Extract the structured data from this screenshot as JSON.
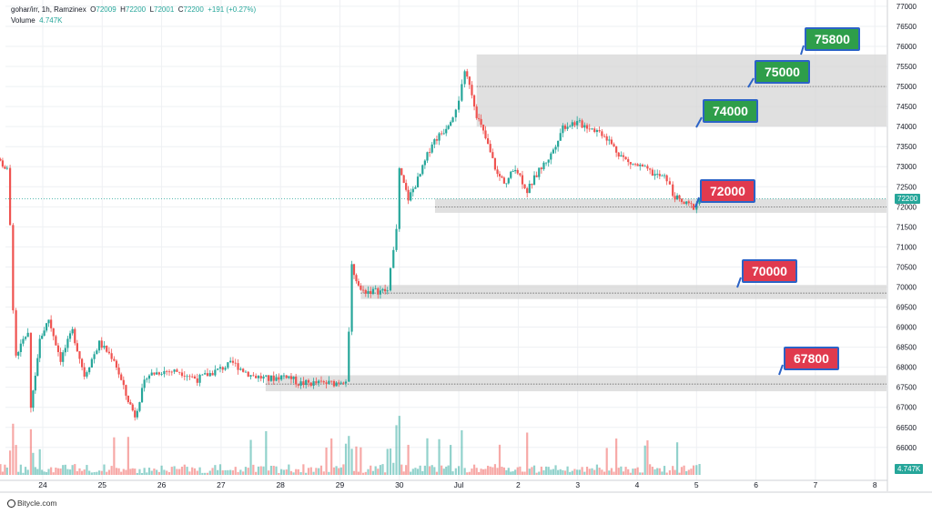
{
  "header": {
    "symbol": "gohar/irr, 1h, Ramzinex",
    "o_label": "O",
    "o_value": "72009",
    "h_label": "H",
    "h_value": "72200",
    "l_label": "L",
    "l_value": "72001",
    "c_label": "C",
    "c_value": "72200",
    "change": "+191 (+0.27%)",
    "volume_label": "Volume",
    "volume_value": "4.747K"
  },
  "footer": {
    "brand": "Bitycle.com"
  },
  "last_price_tag": "72200",
  "volume_tag": "4.747K",
  "colors": {
    "up": "#26a69a",
    "down": "#ef5350",
    "zone": "#d6d6d6",
    "callout_border": "#2b63c7",
    "callout_green": "#2e9e4a",
    "callout_red": "#e03a4e"
  },
  "chart_data": {
    "type": "candlestick",
    "ylim": [
      65500,
      77000
    ],
    "y_ticks": [
      66000,
      66500,
      67000,
      67500,
      68000,
      68500,
      69000,
      69500,
      70000,
      70500,
      71000,
      71500,
      72000,
      72500,
      73000,
      73500,
      74000,
      74500,
      75000,
      75500,
      76000,
      76500,
      77000
    ],
    "x_ticks": [
      "24",
      "25",
      "26",
      "27",
      "28",
      "29",
      "30",
      "Jul",
      "2",
      "3",
      "4",
      "5",
      "6",
      "7",
      "8"
    ],
    "zones": [
      {
        "low": 74000,
        "high": 75800,
        "start": "Jul 13:00"
      },
      {
        "low": 71850,
        "high": 72200,
        "start": "30 19:00"
      },
      {
        "low": 69700,
        "high": 70050,
        "start": "29 13:00"
      },
      {
        "low": 67400,
        "high": 67800,
        "start": "27 20:00"
      }
    ],
    "levels": [
      75000,
      72000,
      69850,
      67580
    ],
    "annotations": [
      {
        "text": "75800",
        "color": "green"
      },
      {
        "text": "75000",
        "color": "green"
      },
      {
        "text": "74000",
        "color": "green"
      },
      {
        "text": "72000",
        "color": "red"
      },
      {
        "text": "70000",
        "color": "red"
      },
      {
        "text": "67800",
        "color": "red"
      }
    ],
    "last_price": 72200,
    "path": [
      [
        23.0,
        73700
      ],
      [
        23.1,
        73900
      ],
      [
        23.25,
        73200
      ],
      [
        23.4,
        72900
      ],
      [
        23.45,
        71500
      ],
      [
        23.5,
        69500
      ],
      [
        23.55,
        68300
      ],
      [
        23.75,
        68900
      ],
      [
        23.8,
        67000
      ],
      [
        23.95,
        68700
      ],
      [
        24.1,
        69200
      ],
      [
        24.3,
        68200
      ],
      [
        24.5,
        68900
      ],
      [
        24.7,
        67800
      ],
      [
        24.95,
        68600
      ],
      [
        25.2,
        68200
      ],
      [
        25.4,
        67300
      ],
      [
        25.55,
        66800
      ],
      [
        25.75,
        67800
      ],
      [
        26.0,
        67900
      ],
      [
        26.3,
        67900
      ],
      [
        26.6,
        67700
      ],
      [
        26.9,
        67900
      ],
      [
        27.2,
        68100
      ],
      [
        27.5,
        67800
      ],
      [
        27.8,
        67700
      ],
      [
        28.1,
        67800
      ],
      [
        28.3,
        67600
      ],
      [
        28.6,
        67600
      ],
      [
        28.9,
        67600
      ],
      [
        29.1,
        67700
      ],
      [
        29.15,
        68800
      ],
      [
        29.2,
        70500
      ],
      [
        29.35,
        69900
      ],
      [
        29.6,
        69900
      ],
      [
        29.8,
        69900
      ],
      [
        29.85,
        70400
      ],
      [
        29.95,
        71500
      ],
      [
        30.0,
        72900
      ],
      [
        30.15,
        72200
      ],
      [
        30.35,
        72800
      ],
      [
        30.55,
        73600
      ],
      [
        30.75,
        73900
      ],
      [
        30.9,
        74300
      ],
      [
        31.0,
        74700
      ],
      [
        31.1,
        75300
      ],
      [
        31.18,
        75100
      ],
      [
        31.3,
        74300
      ],
      [
        31.45,
        73700
      ],
      [
        31.65,
        72800
      ],
      [
        31.8,
        72600
      ],
      [
        31.95,
        73000
      ],
      [
        32.15,
        72400
      ],
      [
        32.35,
        72900
      ],
      [
        32.55,
        73300
      ],
      [
        32.75,
        74000
      ],
      [
        32.95,
        74100
      ],
      [
        33.2,
        74000
      ],
      [
        33.45,
        73800
      ],
      [
        33.65,
        73400
      ],
      [
        33.85,
        73100
      ],
      [
        34.05,
        73000
      ],
      [
        34.3,
        72800
      ],
      [
        34.5,
        72700
      ],
      [
        34.6,
        72300
      ],
      [
        34.75,
        72100
      ],
      [
        34.95,
        72000
      ],
      [
        35.05,
        72200
      ]
    ]
  }
}
